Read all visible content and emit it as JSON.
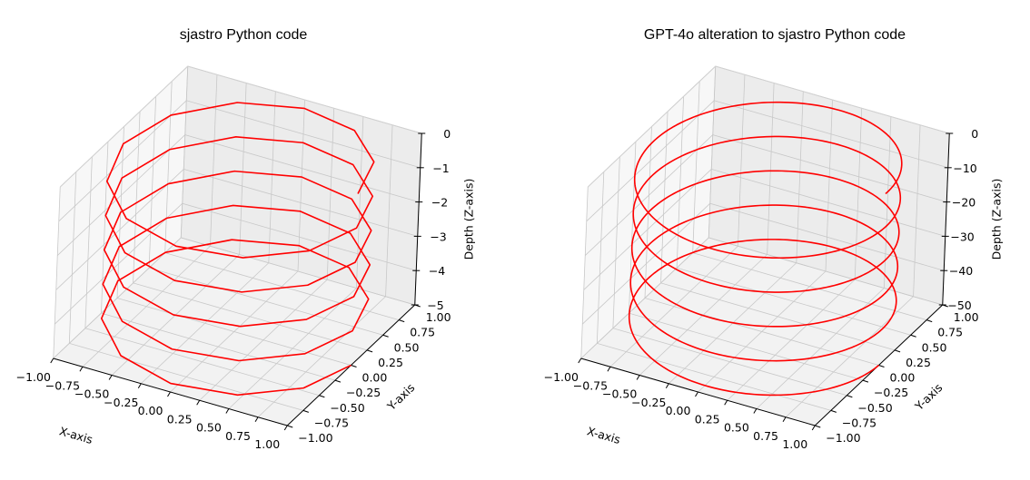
{
  "chart_data": [
    {
      "type": "line",
      "projection": "3d",
      "title": "sjastro Python code",
      "xlabel": "X-axis",
      "ylabel": "Y-axis",
      "zlabel": "Depth (Z-axis)",
      "xlim": [
        -1.0,
        1.0
      ],
      "ylim": [
        -1.0,
        1.0
      ],
      "zlim": [
        -5,
        0
      ],
      "xticks": [
        "−1.00",
        "−0.75",
        "−0.50",
        "−0.25",
        "0.00",
        "0.25",
        "0.50",
        "0.75",
        "1.00"
      ],
      "yticks": [
        "−1.00",
        "−0.75",
        "−0.50",
        "−0.25",
        "0.00",
        "0.25",
        "0.50",
        "0.75",
        "1.00"
      ],
      "zticks": [
        "0",
        "−1",
        "−2",
        "−3",
        "−4",
        "−5"
      ],
      "zticks_values": [
        0,
        -1,
        -2,
        -3,
        -4,
        -5
      ],
      "grid": true,
      "series": [
        {
          "name": "helix",
          "color": "#ff0000",
          "description": "helix x=cos(t), y=sin(t), z=-t/(2*pi) sampled coarsely",
          "turns": 5,
          "z_start": 0,
          "z_end": -5,
          "samples": 60
        }
      ]
    },
    {
      "type": "line",
      "projection": "3d",
      "title": "GPT-4o alteration to sjastro Python code",
      "xlabel": "X-axis",
      "ylabel": "Y-axis",
      "zlabel": "Depth (Z-axis)",
      "xlim": [
        -1.0,
        1.0
      ],
      "ylim": [
        -1.0,
        1.0
      ],
      "zlim": [
        -50,
        0
      ],
      "xticks": [
        "−1.00",
        "−0.75",
        "−0.50",
        "−0.25",
        "0.00",
        "0.25",
        "0.50",
        "0.75",
        "1.00"
      ],
      "yticks": [
        "−1.00",
        "−0.75",
        "−0.50",
        "−0.25",
        "0.00",
        "0.25",
        "0.50",
        "0.75",
        "1.00"
      ],
      "zticks": [
        "0",
        "−10",
        "−20",
        "−30",
        "−40",
        "−50"
      ],
      "zticks_values": [
        0,
        -10,
        -20,
        -30,
        -40,
        -50
      ],
      "grid": true,
      "series": [
        {
          "name": "helix",
          "color": "#ff0000",
          "description": "helix x=cos(t), y=sin(t), z=-10*t/(2*pi) smooth",
          "turns": 5,
          "z_start": 0,
          "z_end": -50,
          "samples": 1000
        }
      ]
    }
  ]
}
